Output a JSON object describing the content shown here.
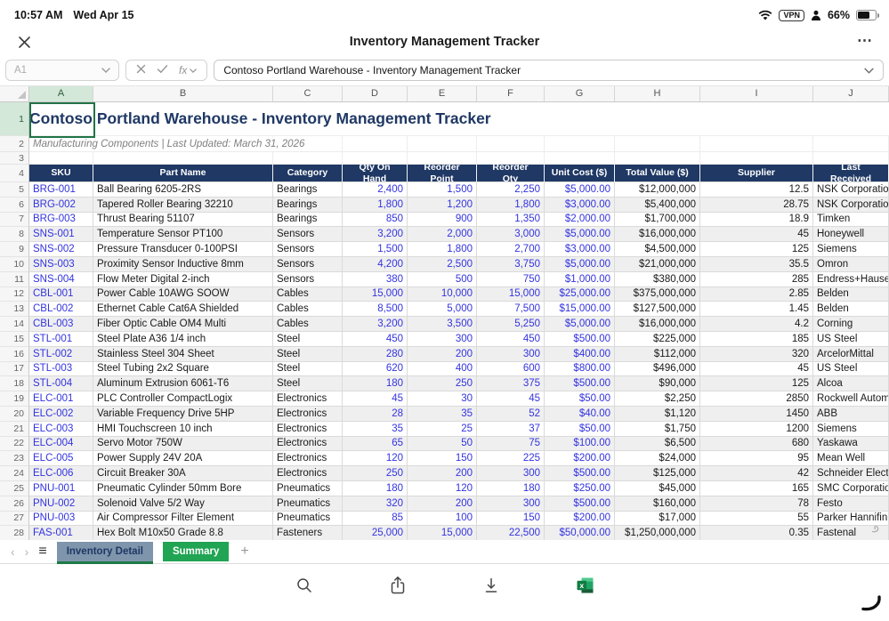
{
  "status_bar": {
    "time": "10:57 AM",
    "date": "Wed Apr 15",
    "vpn": "VPN",
    "battery": "66%"
  },
  "title_bar": {
    "title": "Inventory Management Tracker",
    "more": "⋯"
  },
  "formula_bar": {
    "cell_ref": "A1",
    "fx": "fx",
    "formula": "Contoso Portland Warehouse - Inventory Management Tracker"
  },
  "sheet": {
    "column_letters": [
      "A",
      "B",
      "C",
      "D",
      "E",
      "F",
      "G",
      "H",
      "I",
      "J"
    ],
    "selected_column": "A",
    "selected_cell": "A1",
    "leading_row_numbers": [
      1,
      2,
      3
    ],
    "header_row_number": 4,
    "title": "Contoso Portland Warehouse - Inventory Management Tracker",
    "subtitle": "Manufacturing Components | Last Updated: March 31, 2026",
    "columns": [
      "SKU",
      "Part Name",
      "Category",
      "Qty On Hand",
      "Reorder Point",
      "Reorder Qty",
      "Unit Cost ($)",
      "Total Value ($)",
      "Supplier",
      "Last Received"
    ],
    "rows": [
      [
        5,
        "BRG-001",
        "Ball Bearing 6205-2RS",
        "Bearings",
        "2,400",
        "1,500",
        "2,250",
        "$5,000.00",
        "$12,000,000",
        "12.5",
        "NSK Corporation"
      ],
      [
        6,
        "BRG-002",
        "Tapered Roller Bearing 32210",
        "Bearings",
        "1,800",
        "1,200",
        "1,800",
        "$3,000.00",
        "$5,400,000",
        "28.75",
        "NSK Corporation"
      ],
      [
        7,
        "BRG-003",
        "Thrust Bearing 51107",
        "Bearings",
        "850",
        "900",
        "1,350",
        "$2,000.00",
        "$1,700,000",
        "18.9",
        "Timken"
      ],
      [
        8,
        "SNS-001",
        "Temperature Sensor PT100",
        "Sensors",
        "3,200",
        "2,000",
        "3,000",
        "$5,000.00",
        "$16,000,000",
        "45",
        "Honeywell"
      ],
      [
        9,
        "SNS-002",
        "Pressure Transducer 0-100PSI",
        "Sensors",
        "1,500",
        "1,800",
        "2,700",
        "$3,000.00",
        "$4,500,000",
        "125",
        "Siemens"
      ],
      [
        10,
        "SNS-003",
        "Proximity Sensor Inductive 8mm",
        "Sensors",
        "4,200",
        "2,500",
        "3,750",
        "$5,000.00",
        "$21,000,000",
        "35.5",
        "Omron"
      ],
      [
        11,
        "SNS-004",
        "Flow Meter Digital 2-inch",
        "Sensors",
        "380",
        "500",
        "750",
        "$1,000.00",
        "$380,000",
        "285",
        "Endress+Hauser"
      ],
      [
        12,
        "CBL-001",
        "Power Cable 10AWG SOOW",
        "Cables",
        "15,000",
        "10,000",
        "15,000",
        "$25,000.00",
        "$375,000,000",
        "2.85",
        "Belden"
      ],
      [
        13,
        "CBL-002",
        "Ethernet Cable Cat6A Shielded",
        "Cables",
        "8,500",
        "5,000",
        "7,500",
        "$15,000.00",
        "$127,500,000",
        "1.45",
        "Belden"
      ],
      [
        14,
        "CBL-003",
        "Fiber Optic Cable OM4 Multi",
        "Cables",
        "3,200",
        "3,500",
        "5,250",
        "$5,000.00",
        "$16,000,000",
        "4.2",
        "Corning"
      ],
      [
        15,
        "STL-001",
        "Steel Plate A36 1/4 inch",
        "Steel",
        "450",
        "300",
        "450",
        "$500.00",
        "$225,000",
        "185",
        "US Steel"
      ],
      [
        16,
        "STL-002",
        "Stainless Steel 304 Sheet",
        "Steel",
        "280",
        "200",
        "300",
        "$400.00",
        "$112,000",
        "320",
        "ArcelorMittal"
      ],
      [
        17,
        "STL-003",
        "Steel Tubing 2x2 Square",
        "Steel",
        "620",
        "400",
        "600",
        "$800.00",
        "$496,000",
        "45",
        "US Steel"
      ],
      [
        18,
        "STL-004",
        "Aluminum Extrusion 6061-T6",
        "Steel",
        "180",
        "250",
        "375",
        "$500.00",
        "$90,000",
        "125",
        "Alcoa"
      ],
      [
        19,
        "ELC-001",
        "PLC Controller CompactLogix",
        "Electronics",
        "45",
        "30",
        "45",
        "$50.00",
        "$2,250",
        "2850",
        "Rockwell Automation"
      ],
      [
        20,
        "ELC-002",
        "Variable Frequency Drive 5HP",
        "Electronics",
        "28",
        "35",
        "52",
        "$40.00",
        "$1,120",
        "1450",
        "ABB"
      ],
      [
        21,
        "ELC-003",
        "HMI Touchscreen 10 inch",
        "Electronics",
        "35",
        "25",
        "37",
        "$50.00",
        "$1,750",
        "1200",
        "Siemens"
      ],
      [
        22,
        "ELC-004",
        "Servo Motor 750W",
        "Electronics",
        "65",
        "50",
        "75",
        "$100.00",
        "$6,500",
        "680",
        "Yaskawa"
      ],
      [
        23,
        "ELC-005",
        "Power Supply 24V 20A",
        "Electronics",
        "120",
        "150",
        "225",
        "$200.00",
        "$24,000",
        "95",
        "Mean Well"
      ],
      [
        24,
        "ELC-006",
        "Circuit Breaker 30A",
        "Electronics",
        "250",
        "200",
        "300",
        "$500.00",
        "$125,000",
        "42",
        "Schneider Electric"
      ],
      [
        25,
        "PNU-001",
        "Pneumatic Cylinder 50mm Bore",
        "Pneumatics",
        "180",
        "120",
        "180",
        "$250.00",
        "$45,000",
        "165",
        "SMC Corporation"
      ],
      [
        26,
        "PNU-002",
        "Solenoid Valve 5/2 Way",
        "Pneumatics",
        "320",
        "200",
        "300",
        "$500.00",
        "$160,000",
        "78",
        "Festo"
      ],
      [
        27,
        "PNU-003",
        "Air Compressor Filter Element",
        "Pneumatics",
        "85",
        "100",
        "150",
        "$200.00",
        "$17,000",
        "55",
        "Parker Hannifin"
      ],
      [
        28,
        "FAS-001",
        "Hex Bolt M10x50 Grade 8.8",
        "Fasteners",
        "25,000",
        "15,000",
        "22,500",
        "$50,000.00",
        "$1,250,000,000",
        "0.35",
        "Fastenal"
      ]
    ]
  },
  "tab_bar": {
    "prev": "‹",
    "next": "›",
    "menu": "≡",
    "add": "+",
    "tabs": [
      {
        "label": "Inventory Detail",
        "active": true
      },
      {
        "label": "Summary",
        "active": false
      }
    ]
  },
  "toolbar": {
    "icons": [
      "search-icon",
      "share-icon",
      "download-icon",
      "excel-app-icon"
    ]
  },
  "colors": {
    "navy": "#1F3864",
    "header_bg": "#1F3864",
    "link_blue": "#3333E0",
    "selection_green": "#217346",
    "tab_active_bg": "#7E95AC",
    "tab_summary_bg": "#21A453",
    "tab_underline": "#1E7A45"
  }
}
